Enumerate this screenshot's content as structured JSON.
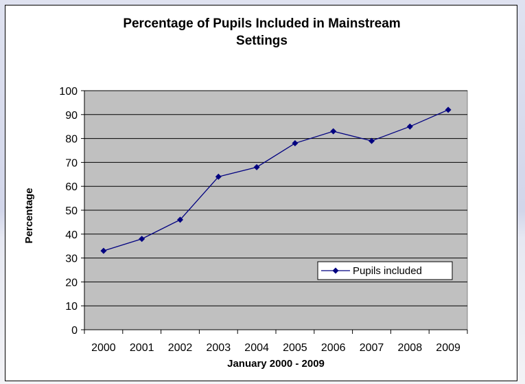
{
  "chart_data": {
    "type": "line",
    "title_lines": [
      "Percentage of Pupils Included in Mainstream",
      "Settings"
    ],
    "xlabel": "January 2000 - 2009",
    "ylabel": "Percentage",
    "categories": [
      "2000",
      "2001",
      "2002",
      "2003",
      "2004",
      "2005",
      "2006",
      "2007",
      "2008",
      "2009"
    ],
    "series": [
      {
        "name": "Pupils included",
        "values": [
          33,
          38,
          46,
          64,
          68,
          78,
          83,
          79,
          85,
          92
        ],
        "color": "#000080"
      }
    ],
    "ylim": [
      0,
      100
    ],
    "yticks": [
      0,
      10,
      20,
      30,
      40,
      50,
      60,
      70,
      80,
      90,
      100
    ],
    "grid": true,
    "legend_position": "lower-right",
    "plot_background": "#c0c0c0"
  }
}
